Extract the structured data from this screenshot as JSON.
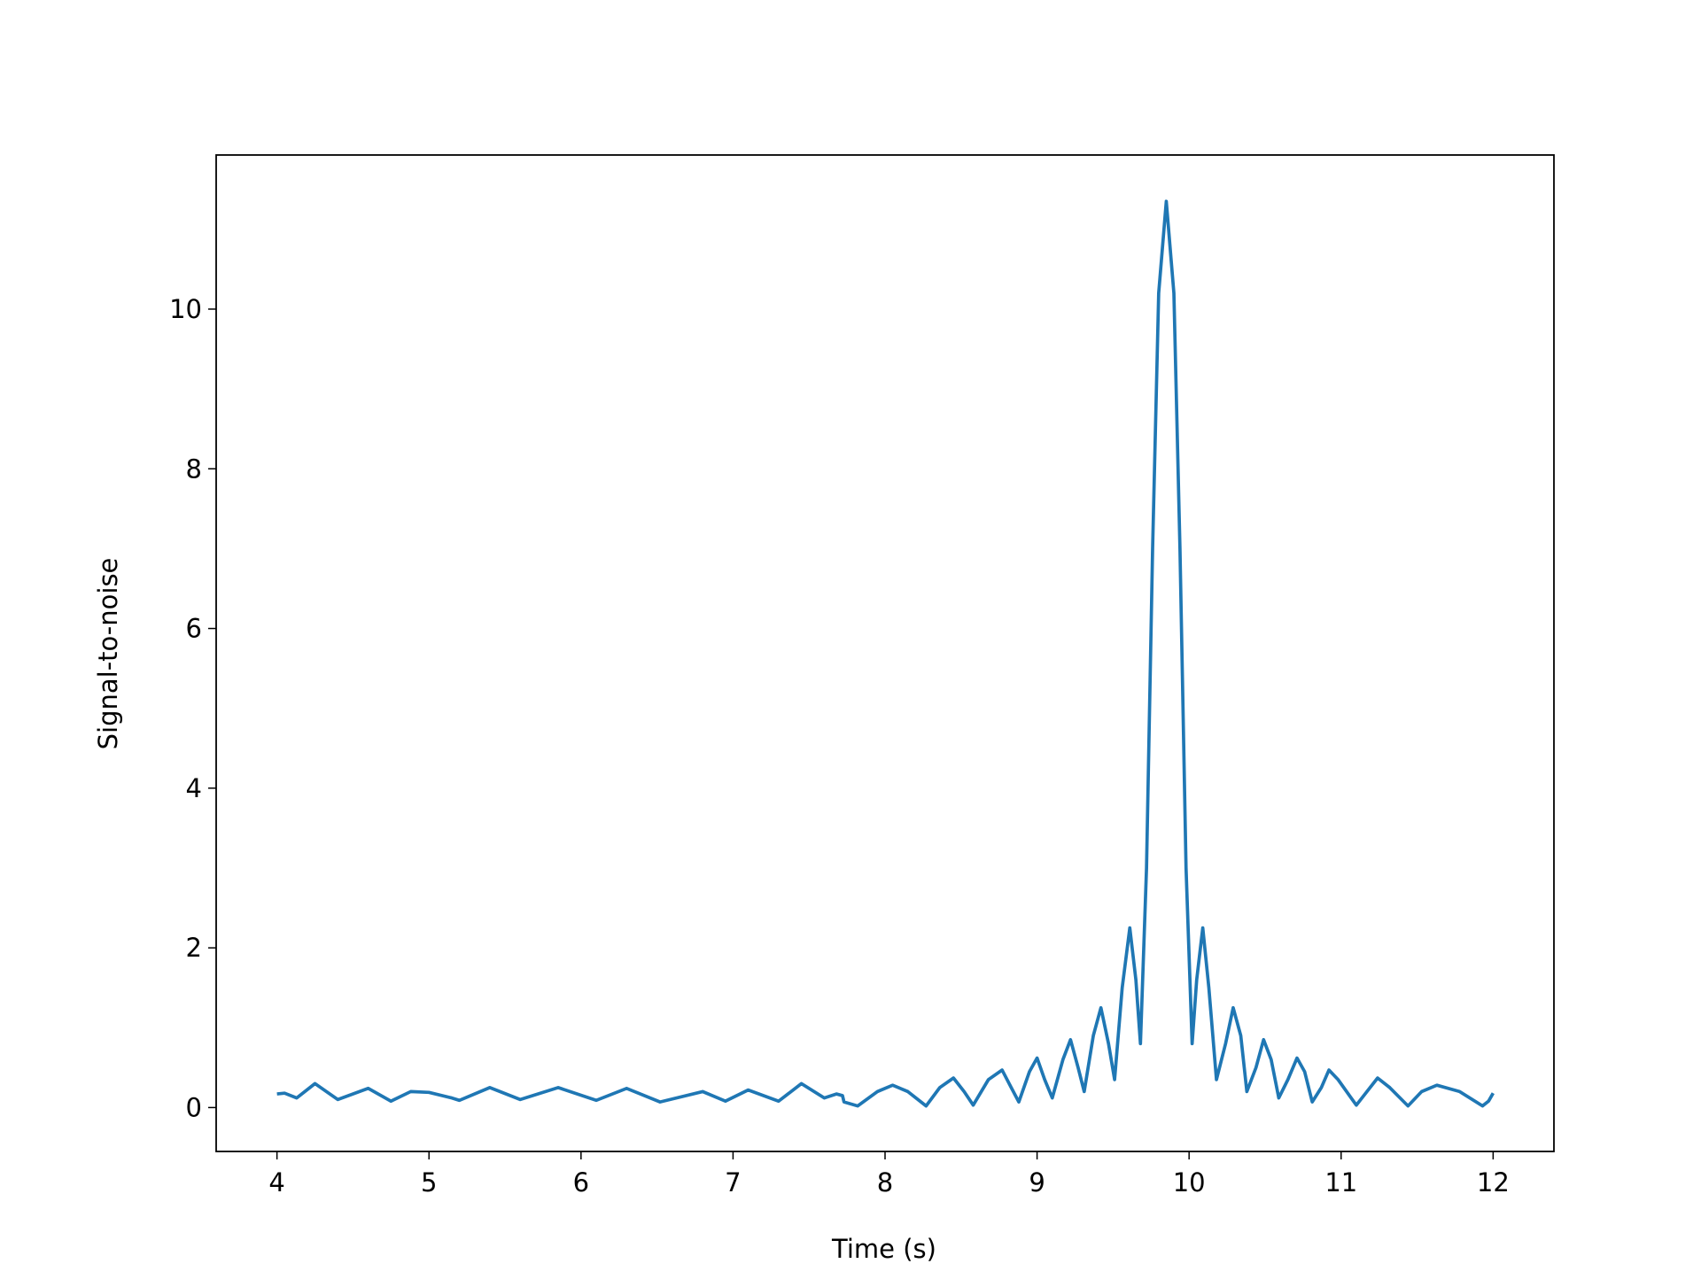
{
  "chart_data": {
    "type": "line",
    "xlabel": "Time (s)",
    "ylabel": "Signal-to-noise",
    "xlim": [
      3.6,
      12.4
    ],
    "ylim": [
      -0.55,
      11.93
    ],
    "xticks": [
      4,
      5,
      6,
      7,
      8,
      9,
      10,
      11,
      12
    ],
    "yticks": [
      0,
      2,
      4,
      6,
      8,
      10
    ],
    "series": [
      {
        "color": "#1f77b4",
        "x": [
          4.0,
          4.05,
          4.13,
          4.25,
          4.4,
          4.6,
          4.75,
          4.88,
          5.0,
          5.15,
          5.2,
          5.4,
          5.6,
          5.85,
          6.1,
          6.3,
          6.52,
          6.8,
          6.95,
          7.1,
          7.3,
          7.45,
          7.6,
          7.68,
          7.72,
          7.73,
          7.82,
          7.95,
          8.05,
          8.15,
          8.27,
          8.36,
          8.45,
          8.52,
          8.58,
          8.68,
          8.77,
          8.83,
          8.88,
          8.95,
          9.0,
          9.05,
          9.1,
          9.17,
          9.22,
          9.27,
          9.31,
          9.37,
          9.42,
          9.47,
          9.51,
          9.56,
          9.61,
          9.65,
          9.68,
          9.72,
          9.76,
          9.8,
          9.85,
          9.9,
          9.94,
          9.98,
          10.02,
          10.05,
          10.09,
          10.13,
          10.18,
          10.24,
          10.29,
          10.34,
          10.38,
          10.44,
          10.49,
          10.54,
          10.59,
          10.65,
          10.71,
          10.76,
          10.81,
          10.87,
          10.92,
          10.98,
          11.1,
          11.17,
          11.24,
          11.32,
          11.44,
          11.53,
          11.63,
          11.78,
          11.93,
          11.97,
          12.0
        ],
        "values": [
          0.17,
          0.18,
          0.12,
          0.3,
          0.1,
          0.24,
          0.08,
          0.2,
          0.19,
          0.12,
          0.09,
          0.25,
          0.1,
          0.25,
          0.09,
          0.24,
          0.07,
          0.2,
          0.08,
          0.22,
          0.08,
          0.3,
          0.12,
          0.17,
          0.15,
          0.07,
          0.02,
          0.2,
          0.28,
          0.2,
          0.02,
          0.25,
          0.37,
          0.2,
          0.03,
          0.35,
          0.47,
          0.25,
          0.07,
          0.45,
          0.62,
          0.35,
          0.12,
          0.6,
          0.85,
          0.5,
          0.2,
          0.9,
          1.25,
          0.8,
          0.35,
          1.5,
          2.25,
          1.6,
          0.8,
          3.0,
          7.0,
          10.2,
          11.35,
          10.2,
          7.0,
          3.0,
          0.8,
          1.6,
          2.25,
          1.5,
          0.35,
          0.8,
          1.25,
          0.9,
          0.2,
          0.5,
          0.85,
          0.6,
          0.12,
          0.35,
          0.62,
          0.45,
          0.07,
          0.25,
          0.47,
          0.35,
          0.03,
          0.2,
          0.37,
          0.25,
          0.02,
          0.2,
          0.28,
          0.2,
          0.02,
          0.08,
          0.18
        ]
      }
    ]
  }
}
